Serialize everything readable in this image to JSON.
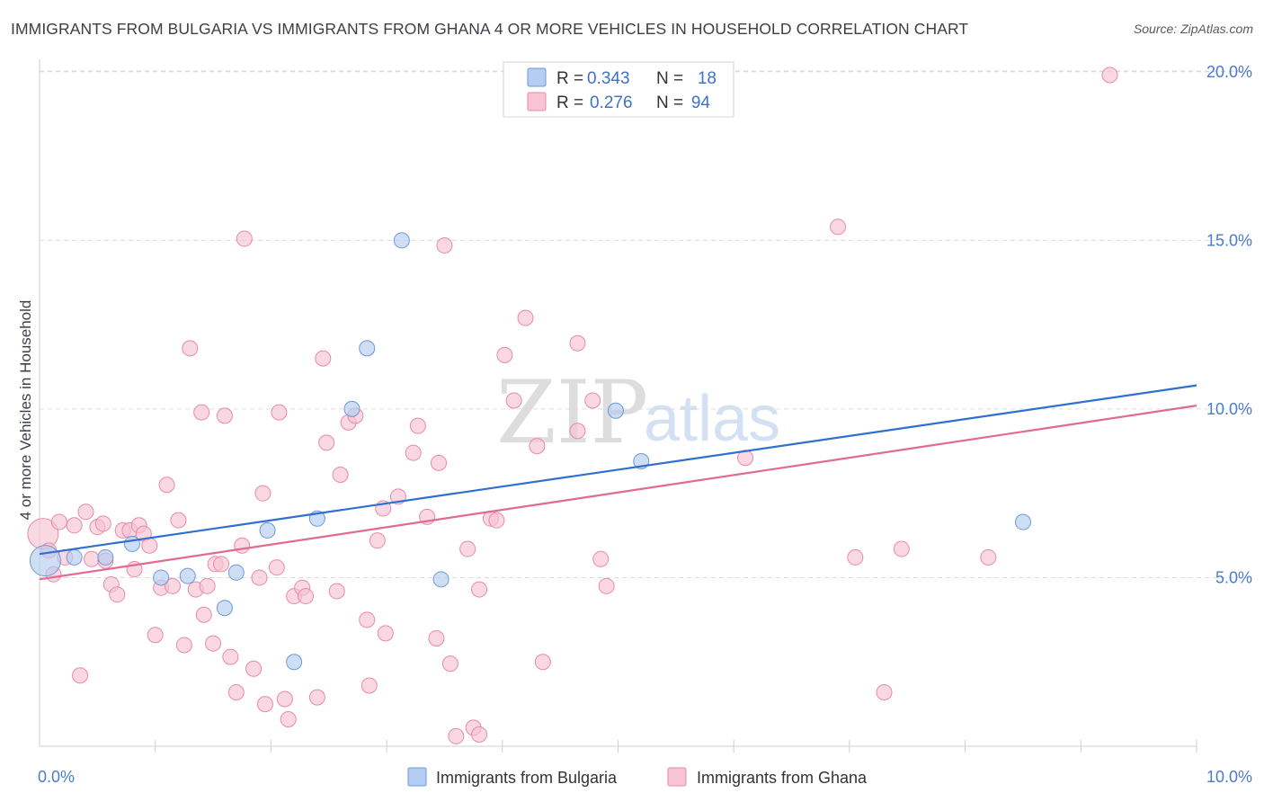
{
  "title": "IMMIGRANTS FROM BULGARIA VS IMMIGRANTS FROM GHANA 4 OR MORE VEHICLES IN HOUSEHOLD CORRELATION CHART",
  "source": "Source: ZipAtlas.com",
  "watermark": {
    "part1": "ZIP",
    "part2": "atlas"
  },
  "colors": {
    "bulgaria_fill": "#b4cdf0",
    "bulgaria_stroke": "#6d98d8",
    "bulgaria_line": "#2f6fd0",
    "ghana_fill": "#f8c3d3",
    "ghana_stroke": "#e88aa8",
    "ghana_line": "#e06a93",
    "tick_label": "#4a7cc7",
    "grid": "#dcdcdc"
  },
  "legend": {
    "rows": [
      {
        "r_label": "R =",
        "r_value": "0.343",
        "n_label": "N =",
        "n_value": "18"
      },
      {
        "r_label": "R =",
        "r_value": "0.276",
        "n_label": "N =",
        "n_value": "94"
      }
    ]
  },
  "chart_data": {
    "type": "scatter",
    "title": "IMMIGRANTS FROM BULGARIA VS IMMIGRANTS FROM GHANA 4 OR MORE VEHICLES IN HOUSEHOLD CORRELATION CHART",
    "xlabel": "",
    "ylabel": "4 or more Vehicles in Household",
    "xlim": [
      0,
      10
    ],
    "ylim": [
      0,
      20.5
    ],
    "x_tick_labels": [
      {
        "value": 0,
        "label": "0.0%"
      },
      {
        "value": 10,
        "label": "10.0%"
      }
    ],
    "y_ticks": [
      {
        "value": 5,
        "label": "5.0%"
      },
      {
        "value": 10,
        "label": "10.0%"
      },
      {
        "value": 15,
        "label": "15.0%"
      },
      {
        "value": 20,
        "label": "20.0%"
      }
    ],
    "series": [
      {
        "name": "Immigrants from Bulgaria",
        "r": 0.343,
        "n": 18,
        "trend": {
          "x": [
            0,
            10
          ],
          "y": [
            5.7,
            10.7
          ]
        },
        "points": [
          {
            "x": 0.05,
            "y": 5.5,
            "big": true
          },
          {
            "x": 0.3,
            "y": 5.6
          },
          {
            "x": 0.57,
            "y": 5.6
          },
          {
            "x": 0.8,
            "y": 6.0
          },
          {
            "x": 1.05,
            "y": 5.0
          },
          {
            "x": 1.28,
            "y": 5.05
          },
          {
            "x": 1.6,
            "y": 4.1
          },
          {
            "x": 1.7,
            "y": 5.15
          },
          {
            "x": 1.97,
            "y": 6.4
          },
          {
            "x": 2.2,
            "y": 2.5
          },
          {
            "x": 2.4,
            "y": 6.75
          },
          {
            "x": 2.7,
            "y": 10.0
          },
          {
            "x": 2.83,
            "y": 11.8
          },
          {
            "x": 3.13,
            "y": 15.0
          },
          {
            "x": 3.47,
            "y": 4.95
          },
          {
            "x": 4.98,
            "y": 9.95
          },
          {
            "x": 5.2,
            "y": 8.45
          },
          {
            "x": 8.5,
            "y": 6.65
          }
        ]
      },
      {
        "name": "Immigrants from Ghana",
        "r": 0.276,
        "n": 94,
        "trend": {
          "x": [
            0,
            10
          ],
          "y": [
            4.95,
            10.1
          ]
        },
        "points": [
          {
            "x": 0.03,
            "y": 6.3,
            "big": true
          },
          {
            "x": 0.08,
            "y": 5.8
          },
          {
            "x": 0.12,
            "y": 5.1
          },
          {
            "x": 0.17,
            "y": 6.65
          },
          {
            "x": 0.22,
            "y": 5.6
          },
          {
            "x": 0.3,
            "y": 6.55
          },
          {
            "x": 0.35,
            "y": 2.1
          },
          {
            "x": 0.4,
            "y": 6.95
          },
          {
            "x": 0.45,
            "y": 5.55
          },
          {
            "x": 0.5,
            "y": 6.5
          },
          {
            "x": 0.55,
            "y": 6.6
          },
          {
            "x": 0.57,
            "y": 5.5
          },
          {
            "x": 0.62,
            "y": 4.8
          },
          {
            "x": 0.67,
            "y": 4.5
          },
          {
            "x": 0.72,
            "y": 6.4
          },
          {
            "x": 0.78,
            "y": 6.4
          },
          {
            "x": 0.82,
            "y": 5.25
          },
          {
            "x": 0.86,
            "y": 6.55
          },
          {
            "x": 0.9,
            "y": 6.3
          },
          {
            "x": 0.95,
            "y": 5.95
          },
          {
            "x": 1.0,
            "y": 3.3
          },
          {
            "x": 1.05,
            "y": 4.7
          },
          {
            "x": 1.1,
            "y": 7.75
          },
          {
            "x": 1.15,
            "y": 4.75
          },
          {
            "x": 1.2,
            "y": 6.7
          },
          {
            "x": 1.25,
            "y": 3.0
          },
          {
            "x": 1.3,
            "y": 11.8
          },
          {
            "x": 1.35,
            "y": 4.65
          },
          {
            "x": 1.4,
            "y": 9.9
          },
          {
            "x": 1.42,
            "y": 3.9
          },
          {
            "x": 1.45,
            "y": 4.75
          },
          {
            "x": 1.5,
            "y": 3.05
          },
          {
            "x": 1.52,
            "y": 5.4
          },
          {
            "x": 1.57,
            "y": 5.4
          },
          {
            "x": 1.6,
            "y": 9.8
          },
          {
            "x": 1.65,
            "y": 2.65
          },
          {
            "x": 1.7,
            "y": 1.6
          },
          {
            "x": 1.75,
            "y": 5.95
          },
          {
            "x": 1.77,
            "y": 15.05
          },
          {
            "x": 1.85,
            "y": 2.3
          },
          {
            "x": 1.9,
            "y": 5.0
          },
          {
            "x": 1.93,
            "y": 7.5
          },
          {
            "x": 1.95,
            "y": 1.25
          },
          {
            "x": 2.05,
            "y": 5.3
          },
          {
            "x": 2.07,
            "y": 9.9
          },
          {
            "x": 2.12,
            "y": 1.4
          },
          {
            "x": 2.15,
            "y": 0.8
          },
          {
            "x": 2.2,
            "y": 4.45
          },
          {
            "x": 2.27,
            "y": 4.7
          },
          {
            "x": 2.3,
            "y": 4.45
          },
          {
            "x": 2.4,
            "y": 1.45
          },
          {
            "x": 2.45,
            "y": 11.5
          },
          {
            "x": 2.48,
            "y": 9.0
          },
          {
            "x": 2.57,
            "y": 4.6
          },
          {
            "x": 2.6,
            "y": 8.05
          },
          {
            "x": 2.67,
            "y": 9.6
          },
          {
            "x": 2.73,
            "y": 9.8
          },
          {
            "x": 2.83,
            "y": 3.75
          },
          {
            "x": 2.85,
            "y": 1.8
          },
          {
            "x": 2.92,
            "y": 6.1
          },
          {
            "x": 2.97,
            "y": 7.05
          },
          {
            "x": 2.99,
            "y": 3.35
          },
          {
            "x": 3.1,
            "y": 7.4
          },
          {
            "x": 3.23,
            "y": 8.7
          },
          {
            "x": 3.27,
            "y": 9.5
          },
          {
            "x": 3.35,
            "y": 6.8
          },
          {
            "x": 3.43,
            "y": 3.2
          },
          {
            "x": 3.45,
            "y": 8.4
          },
          {
            "x": 3.5,
            "y": 14.85
          },
          {
            "x": 3.55,
            "y": 2.45
          },
          {
            "x": 3.6,
            "y": 0.3
          },
          {
            "x": 3.7,
            "y": 5.85
          },
          {
            "x": 3.75,
            "y": 0.55
          },
          {
            "x": 3.8,
            "y": 0.35
          },
          {
            "x": 3.8,
            "y": 4.65
          },
          {
            "x": 3.9,
            "y": 6.75
          },
          {
            "x": 3.95,
            "y": 6.7
          },
          {
            "x": 4.02,
            "y": 11.6
          },
          {
            "x": 4.1,
            "y": 10.25
          },
          {
            "x": 4.2,
            "y": 12.7
          },
          {
            "x": 4.3,
            "y": 8.9
          },
          {
            "x": 4.35,
            "y": 2.5
          },
          {
            "x": 4.65,
            "y": 11.95
          },
          {
            "x": 4.65,
            "y": 9.35
          },
          {
            "x": 4.78,
            "y": 10.25
          },
          {
            "x": 4.85,
            "y": 5.55
          },
          {
            "x": 4.9,
            "y": 4.75
          },
          {
            "x": 6.1,
            "y": 8.55
          },
          {
            "x": 6.9,
            "y": 15.4
          },
          {
            "x": 7.05,
            "y": 5.6
          },
          {
            "x": 7.3,
            "y": 1.6
          },
          {
            "x": 7.45,
            "y": 5.85
          },
          {
            "x": 8.2,
            "y": 5.6
          },
          {
            "x": 9.25,
            "y": 19.9
          }
        ]
      }
    ]
  },
  "bottom_legend": {
    "items": [
      {
        "label": "Immigrants from Bulgaria"
      },
      {
        "label": "Immigrants from Ghana"
      }
    ]
  }
}
